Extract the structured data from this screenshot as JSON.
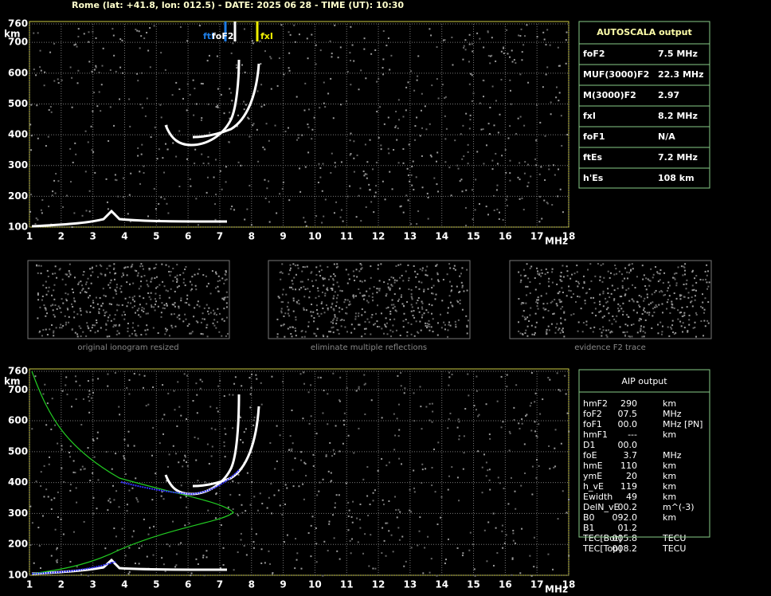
{
  "header": {
    "title": "Rome (lat: +41.8, lon: 012.5) - DATE: 2025 06 28 - TIME (UT): 10:30"
  },
  "ionograms": [
    {
      "xlim": [
        1,
        18
      ],
      "ylim": [
        100,
        760
      ],
      "xticks": [
        1,
        2,
        3,
        4,
        5,
        6,
        7,
        8,
        9,
        10,
        11,
        12,
        13,
        14,
        15,
        16,
        17,
        18
      ],
      "yticks": [
        100,
        200,
        300,
        400,
        500,
        600,
        700,
        760
      ],
      "x_unit": "MHz",
      "y_unit": "km",
      "markers": [
        "ftl",
        "foF2",
        "fxI"
      ]
    },
    {
      "xlim": [
        1,
        18
      ],
      "ylim": [
        100,
        760
      ],
      "xticks": [
        1,
        2,
        3,
        4,
        5,
        6,
        7,
        8,
        9,
        10,
        11,
        12,
        13,
        14,
        15,
        16,
        17,
        18
      ],
      "yticks": [
        100,
        200,
        300,
        400,
        500,
        600,
        700,
        760
      ],
      "x_unit": "MHz",
      "y_unit": "km"
    }
  ],
  "thumbnails": [
    "original ionogram resized",
    "eliminate multiple reflections",
    "evidence F2 trace"
  ],
  "autoscala": {
    "title": "AUTOSCALA output",
    "rows": [
      [
        "foF2",
        "7.5 MHz"
      ],
      [
        "MUF(3000)F2",
        "22.3 MHz"
      ],
      [
        "M(3000)F2",
        "2.97"
      ],
      [
        "fxI",
        "8.2 MHz"
      ],
      [
        "foF1",
        "N/A"
      ],
      [
        "ftEs",
        "7.2 MHz"
      ],
      [
        "h'Es",
        "108    km"
      ]
    ]
  },
  "aip": {
    "title": "AIP output",
    "rows": [
      [
        "hmF2",
        "290",
        "km"
      ],
      [
        "foF2",
        "07.5",
        "MHz"
      ],
      [
        "foF1",
        "00.0",
        "MHz   [PN]"
      ],
      [
        "hmF1",
        "---",
        "km"
      ],
      [
        "D1",
        "00.0",
        ""
      ],
      [
        "foE",
        "3.7",
        "MHz"
      ],
      [
        "hmE",
        "110",
        "km"
      ],
      [
        "ymE",
        "20",
        "km"
      ],
      [
        "h_vE",
        "119",
        "km"
      ],
      [
        "Ewidth",
        "49",
        "km"
      ],
      [
        "DelN_vE",
        "00.2",
        "m^(-3)"
      ],
      [
        "B0",
        "092.0",
        "km"
      ],
      [
        "B1",
        "01.2",
        ""
      ],
      [
        "TEC[Bot]",
        "005.8",
        "TECU"
      ],
      [
        "TEC[Top]",
        "008.2",
        "TECU"
      ]
    ]
  }
}
